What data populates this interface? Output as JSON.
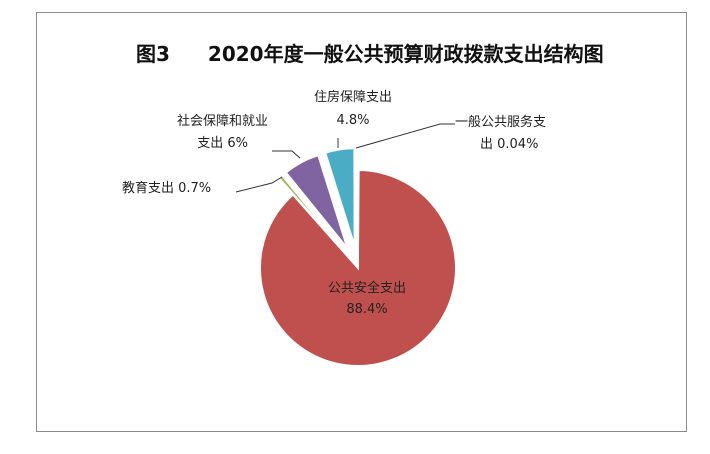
{
  "chart_data": {
    "type": "pie",
    "title": "2020年度一般公共预算财政拨款支出结构图",
    "figure_number": "图3",
    "slices": [
      {
        "name": "公共安全支出",
        "value": 88.4,
        "value_label": "88.4%",
        "color": "#c0504d"
      },
      {
        "name": "教育支出",
        "value": 0.7,
        "value_label": "0.7%",
        "color": "#9bbb59"
      },
      {
        "name": "社会保障和就业支出",
        "value": 6,
        "value_label": "6%",
        "color": "#8064a2"
      },
      {
        "name": "住房保障支出",
        "value": 4.8,
        "value_label": "4.8%",
        "color": "#4bacc6"
      },
      {
        "name": "一般公共服务支出",
        "value": 0.04,
        "value_label": "0.04%",
        "color": "#f79646"
      }
    ],
    "labels": {
      "public_security": {
        "line1": "公共安全支出",
        "line2": "88.4%"
      },
      "education": {
        "line1": "教育支出 0.7%"
      },
      "social": {
        "line1": "社会保障和就业",
        "line2": "支出 6%"
      },
      "housing": {
        "line1": "住房保障支出",
        "line2": "4.8%"
      },
      "general": {
        "line1": "一般公共服务支",
        "line2": "出 0.04%"
      }
    },
    "exploded": true
  }
}
